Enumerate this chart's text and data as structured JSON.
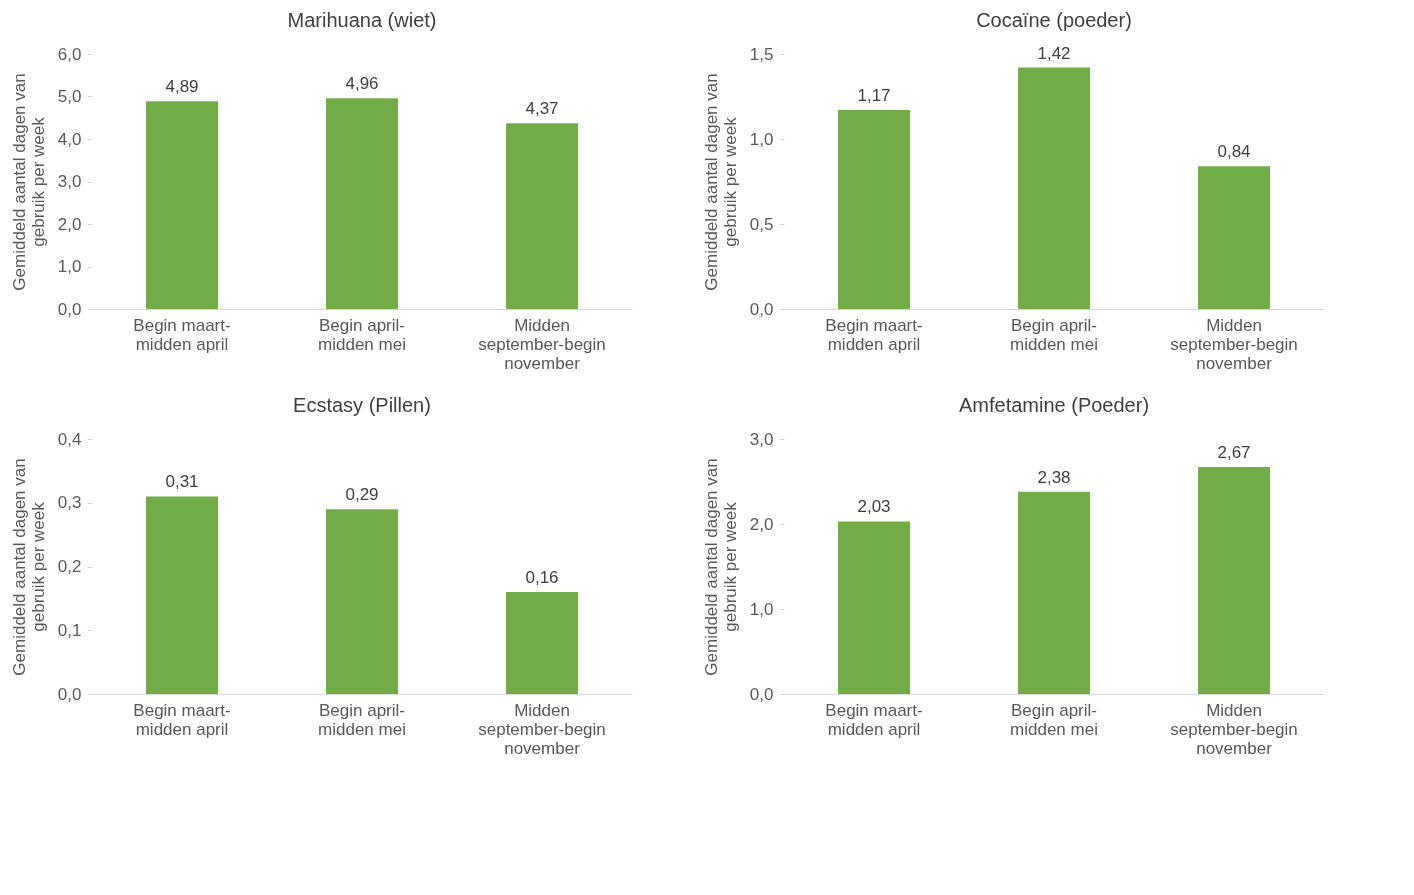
{
  "chart_data": [
    {
      "type": "bar",
      "title": "Marihuana (wiet)",
      "ylabel": "Gemiddeld aantal dagen van gebruik per week",
      "categories": [
        "Begin maart-midden april",
        "Begin april-midden mei",
        "Midden september-begin november"
      ],
      "values": [
        4.89,
        4.96,
        4.37
      ],
      "value_labels": [
        "4,89",
        "4,96",
        "4,37"
      ],
      "color": "#70ad47",
      "ylim": [
        0,
        6
      ],
      "yticks": [
        {
          "value": 0,
          "label": "0,0"
        },
        {
          "value": 1,
          "label": "1,0"
        },
        {
          "value": 2,
          "label": "2,0"
        },
        {
          "value": 3,
          "label": "3,0"
        },
        {
          "value": 4,
          "label": "4,0"
        },
        {
          "value": 5,
          "label": "5,0"
        },
        {
          "value": 6,
          "label": "6,0"
        }
      ],
      "grid": false
    },
    {
      "type": "bar",
      "title": "Cocaïne (poeder)",
      "ylabel": "Gemiddeld aantal dagen van gebruik per week",
      "categories": [
        "Begin maart-midden april",
        "Begin april-midden mei",
        "Midden september-begin november"
      ],
      "values": [
        1.17,
        1.42,
        0.84
      ],
      "value_labels": [
        "1,17",
        "1,42",
        "0,84"
      ],
      "color": "#70ad47",
      "ylim": [
        0,
        1.5
      ],
      "yticks": [
        {
          "value": 0,
          "label": "0,0"
        },
        {
          "value": 0.5,
          "label": "0,5"
        },
        {
          "value": 1,
          "label": "1,0"
        },
        {
          "value": 1.5,
          "label": "1,5"
        }
      ],
      "grid": false
    },
    {
      "type": "bar",
      "title": "Ecstasy (Pillen)",
      "ylabel": "Gemiddeld aantal dagen van gebruik per week",
      "categories": [
        "Begin maart-midden april",
        "Begin april-midden mei",
        "Midden september-begin november"
      ],
      "values": [
        0.31,
        0.29,
        0.16
      ],
      "value_labels": [
        "0,31",
        "0,29",
        "0,16"
      ],
      "color": "#70ad47",
      "ylim": [
        0,
        0.4
      ],
      "yticks": [
        {
          "value": 0,
          "label": "0,0"
        },
        {
          "value": 0.1,
          "label": "0,1"
        },
        {
          "value": 0.2,
          "label": "0,2"
        },
        {
          "value": 0.3,
          "label": "0,3"
        },
        {
          "value": 0.4,
          "label": "0,4"
        }
      ],
      "grid": false
    },
    {
      "type": "bar",
      "title": "Amfetamine  (Poeder)",
      "ylabel": "Gemiddeld aantal dagen van gebruik per week",
      "categories": [
        "Begin maart-midden april",
        "Begin april-midden mei",
        "Midden september-begin november"
      ],
      "values": [
        2.03,
        2.38,
        2.67
      ],
      "value_labels": [
        "2,03",
        "2,38",
        "2,67"
      ],
      "color": "#70ad47",
      "ylim": [
        0,
        3
      ],
      "yticks": [
        {
          "value": 0,
          "label": "0,0"
        },
        {
          "value": 1,
          "label": "1,0"
        },
        {
          "value": 2,
          "label": "2,0"
        },
        {
          "value": 3,
          "label": "3,0"
        }
      ],
      "grid": false
    }
  ]
}
